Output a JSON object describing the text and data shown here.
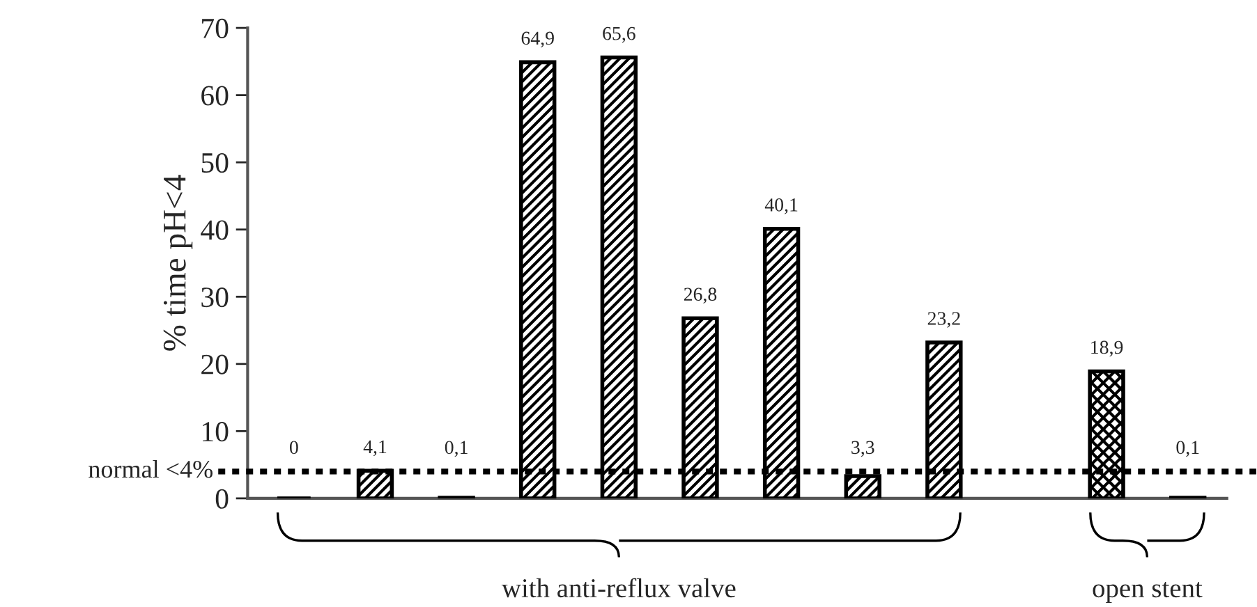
{
  "chart_data": {
    "type": "bar",
    "ylabel": "% time pH<4",
    "categories": [
      null,
      null,
      null,
      null,
      null,
      null,
      null,
      null,
      null,
      null,
      null,
      null
    ],
    "series": [
      {
        "color": "#000000",
        "values": [
          0,
          4.1,
          0.1,
          64.9,
          65.6,
          26.8,
          40.1,
          3.3,
          23.2,
          null,
          null,
          null
        ],
        "value_labels": [
          "0",
          "4,1",
          "0,1",
          "64,9",
          "65,6",
          "26,8",
          "40,1",
          "3,3",
          "23,2",
          null,
          null,
          null
        ]
      },
      {
        "color": "#000000",
        "values": [
          null,
          null,
          null,
          null,
          null,
          null,
          null,
          null,
          null,
          null,
          18.9,
          0.1
        ],
        "value_labels": [
          null,
          null,
          null,
          null,
          null,
          null,
          null,
          null,
          null,
          null,
          "18,9",
          "0,1"
        ]
      }
    ],
    "ylim": [
      0,
      70
    ],
    "yticks": [
      0,
      10,
      20,
      30,
      40,
      50,
      60,
      70
    ],
    "ref_lines": [
      {
        "axis": "y",
        "value": 4,
        "label": "normal <4%",
        "color": "#000000",
        "line_style": "dotted"
      }
    ],
    "annotations": [
      "with anti-reflux valve",
      "open stent"
    ],
    "grid": false
  }
}
